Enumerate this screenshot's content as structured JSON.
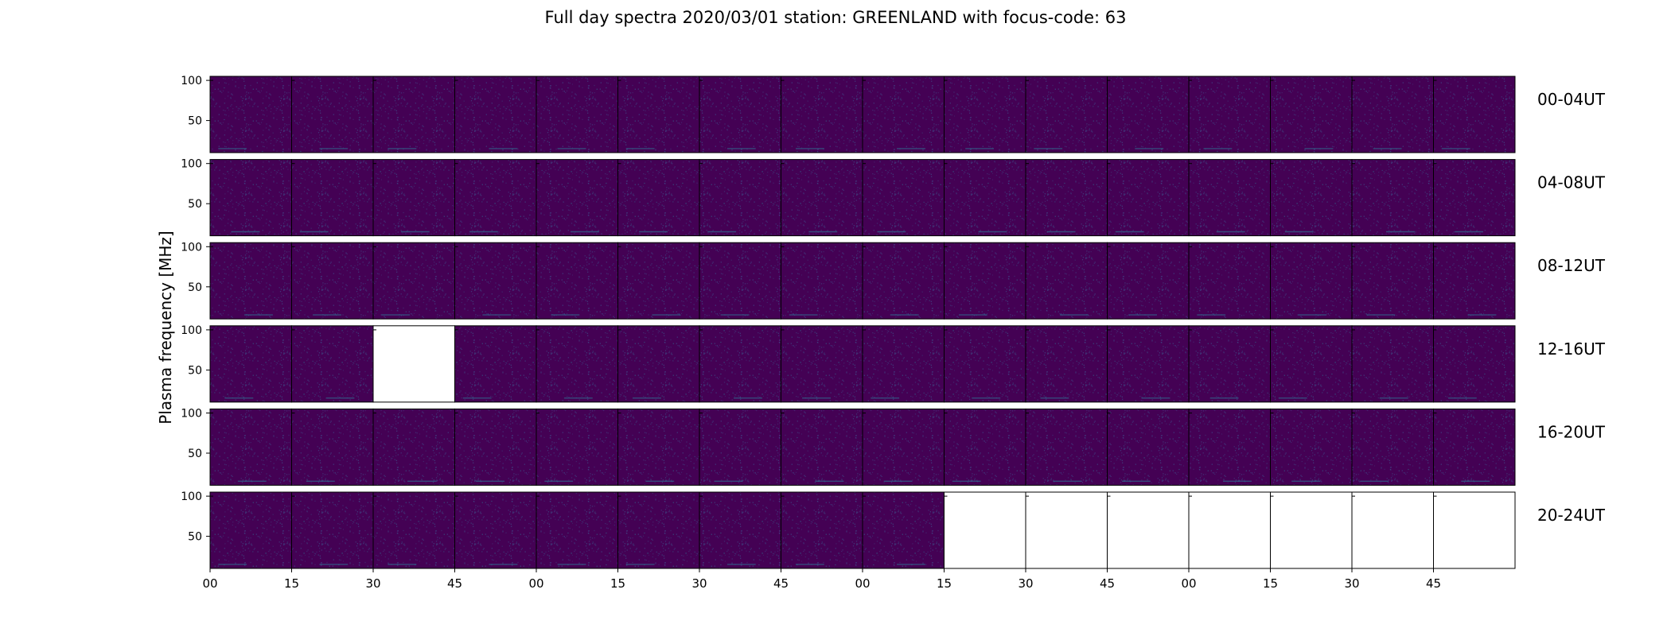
{
  "chart_data": {
    "type": "heatmap",
    "title": "Full day spectra 2020/03/01 station: GREENLAND with focus-code: 63",
    "ylabel": "Plasma frequency [MHz]",
    "yticks": [
      "100",
      "50"
    ],
    "ylim": [
      10,
      105
    ],
    "xticks": [
      "00",
      "15",
      "30",
      "45",
      "00",
      "15",
      "30",
      "45",
      "00",
      "15",
      "30",
      "45",
      "00",
      "15",
      "30",
      "45"
    ],
    "panels_per_row": 16,
    "colormap": {
      "low": "#440154",
      "mid": "#31688e",
      "high": "#35b779",
      "empty": "#ffffff"
    },
    "rows": [
      {
        "label": "00-04UT",
        "empty_panels": []
      },
      {
        "label": "04-08UT",
        "empty_panels": []
      },
      {
        "label": "08-12UT",
        "empty_panels": []
      },
      {
        "label": "12-16UT",
        "empty_panels": [
          2
        ]
      },
      {
        "label": "16-20UT",
        "empty_panels": []
      },
      {
        "label": "20-24UT",
        "empty_panels": [
          9,
          10,
          11,
          12,
          13,
          14,
          15
        ]
      }
    ]
  }
}
